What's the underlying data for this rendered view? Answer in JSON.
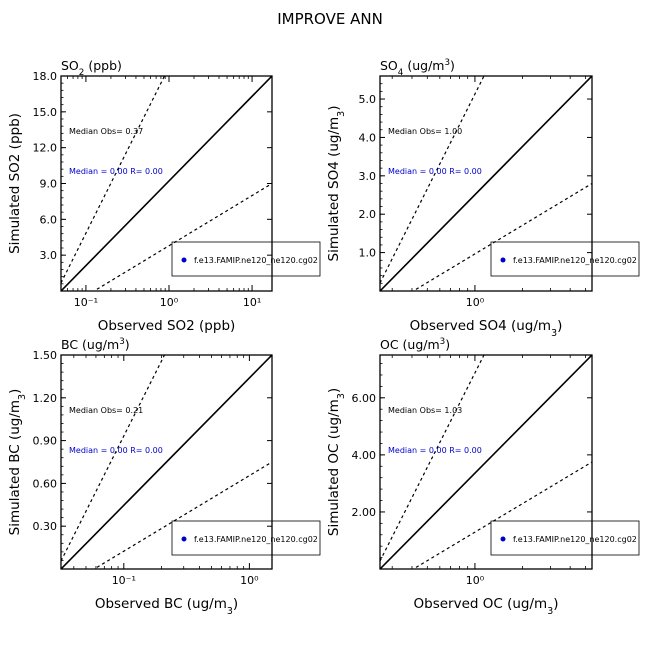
{
  "figure_title": "IMPROVE ANN",
  "colors": {
    "axes": "#000000",
    "stat_text": "#0000cc",
    "marker": "#0000cc"
  },
  "chart_data": [
    {
      "type": "scatter",
      "title": "SO2 (ppb)",
      "xlabel": "Observed SO2 (ppb)",
      "ylabel": "Simulated SO2 (ppb)",
      "xscale": "log",
      "xtick_values": [
        0.1,
        1,
        10
      ],
      "xtick_labels": [
        "10⁻¹",
        "10⁰",
        "10¹"
      ],
      "ylim": [
        0,
        18
      ],
      "yticks": [
        "3.0",
        "6.0",
        "9.0",
        "12.0",
        "15.0",
        "18.0"
      ],
      "median_obs_text": "Median Obs= 0.37",
      "median_stat_text": "Median = 0.00 R= 0.00",
      "legend": "f.e13.FAMIP.ne120_ne120.cg02",
      "legend_position": "lower-right",
      "reference_lines": [
        "1:1",
        "2:1",
        "1:2"
      ],
      "points": []
    },
    {
      "type": "scatter",
      "title": "SO4 (ug/m3)",
      "xlabel": "Observed SO4 (ug/m3)",
      "ylabel": "Simulated SO4 (ug/m3)",
      "xscale": "log",
      "xtick_values": [
        1
      ],
      "xtick_labels": [
        "10⁰"
      ],
      "ylim": [
        0,
        5.6
      ],
      "yticks": [
        "1.0",
        "2.0",
        "3.0",
        "4.0",
        "5.0"
      ],
      "median_obs_text": "Median Obs= 1.00",
      "median_stat_text": "Median = 0.00 R= 0.00",
      "legend": "f.e13.FAMIP.ne120_ne120.cg02",
      "legend_position": "lower-right",
      "reference_lines": [
        "1:1",
        "2:1",
        "1:2"
      ],
      "points": []
    },
    {
      "type": "scatter",
      "title": "BC (ug/m3)",
      "xlabel": "Observed BC (ug/m3)",
      "ylabel": "Simulated BC (ug/m3)",
      "xscale": "log",
      "xtick_values": [
        0.1,
        1
      ],
      "xtick_labels": [
        "10⁻¹",
        "10⁰"
      ],
      "ylim": [
        0,
        1.5
      ],
      "yticks": [
        "0.30",
        "0.60",
        "0.90",
        "1.20",
        "1.50"
      ],
      "median_obs_text": "Median Obs= 0.21",
      "median_stat_text": "Median = 0.00 R= 0.00",
      "legend": "f.e13.FAMIP.ne120_ne120.cg02",
      "legend_position": "lower-right",
      "reference_lines": [
        "1:1",
        "2:1",
        "1:2"
      ],
      "points": []
    },
    {
      "type": "scatter",
      "title": "OC (ug/m3)",
      "xlabel": "Observed OC (ug/m3)",
      "ylabel": "Simulated OC (ug/m3)",
      "xscale": "log",
      "xtick_values": [
        1
      ],
      "xtick_labels": [
        "10⁰"
      ],
      "ylim": [
        0,
        7.5
      ],
      "yticks": [
        "2.00",
        "4.00",
        "6.00"
      ],
      "median_obs_text": "Median Obs= 1.03",
      "median_stat_text": "Median = 0.00 R= 0.00",
      "legend": "f.e13.FAMIP.ne120_ne120.cg02",
      "legend_position": "lower-right",
      "reference_lines": [
        "1:1",
        "2:1",
        "1:2"
      ],
      "points": []
    }
  ]
}
